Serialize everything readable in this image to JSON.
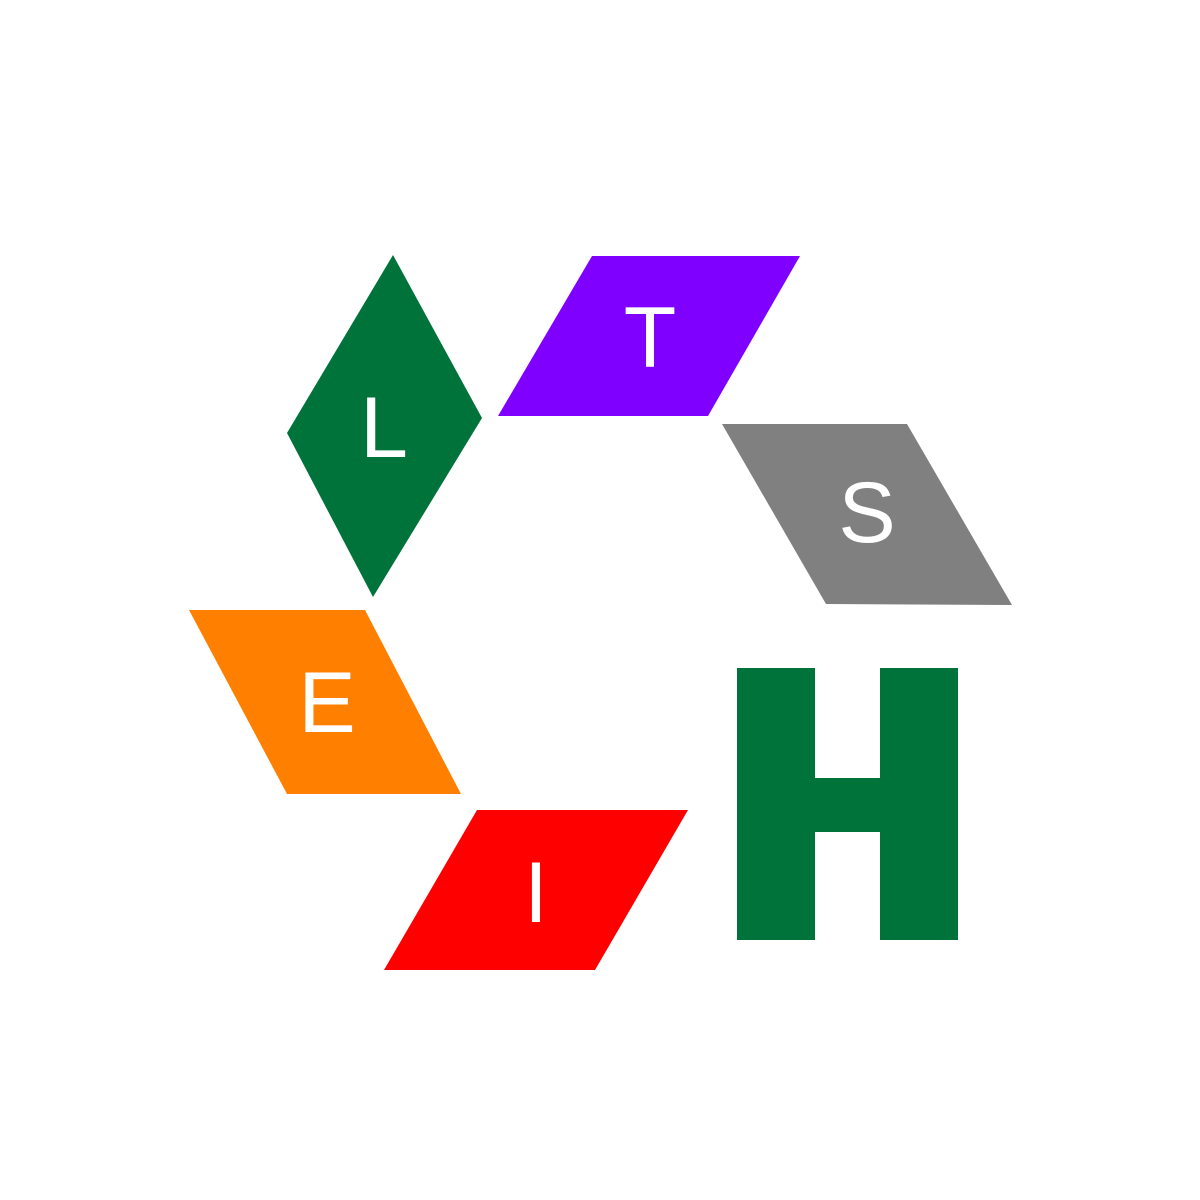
{
  "logo": {
    "tiles": [
      {
        "id": "l",
        "letter": "L",
        "color": "#00733A"
      },
      {
        "id": "t",
        "letter": "T",
        "color": "#8000FF"
      },
      {
        "id": "s",
        "letter": "S",
        "color": "#808080"
      },
      {
        "id": "e",
        "letter": "E",
        "color": "#FF8000"
      },
      {
        "id": "i",
        "letter": "I",
        "color": "#FF0000"
      }
    ],
    "big_letter": {
      "letter": "H",
      "color": "#00733A"
    },
    "background": "#FFFFFF"
  }
}
